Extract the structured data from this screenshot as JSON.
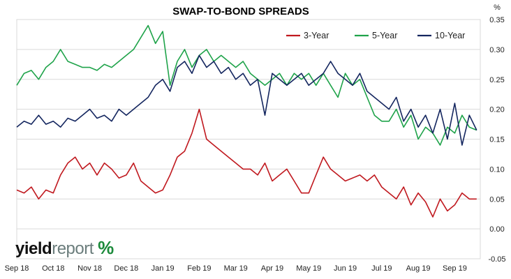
{
  "chart_data": {
    "type": "line",
    "title": "SWAP-TO-BOND SPREADS",
    "unit_label": "%",
    "xlabel": "",
    "ylabel": "",
    "ylim": [
      -0.05,
      0.35
    ],
    "yticks": [
      "0.35",
      "0.30",
      "0.25",
      "0.20",
      "0.15",
      "0.10",
      "0.05",
      "0.00",
      "-0.05"
    ],
    "y_axis_position": "right",
    "xtick_labels": [
      "Sep 18",
      "Oct 18",
      "Nov 18",
      "Dec 18",
      "Jan 19",
      "Feb 19",
      "Mar 19",
      "Apr 19",
      "May 19",
      "Jun 19",
      "Jul 19",
      "Aug 19",
      "Sep 19"
    ],
    "x_range_months": [
      0,
      12.7
    ],
    "grid": true,
    "legend": "top-right",
    "series": [
      {
        "name": "3-Year",
        "color": "#c0191f",
        "x": [
          0,
          0.2,
          0.4,
          0.6,
          0.8,
          1.0,
          1.2,
          1.4,
          1.6,
          1.8,
          2.0,
          2.2,
          2.4,
          2.6,
          2.8,
          3.0,
          3.2,
          3.4,
          3.6,
          3.8,
          4.0,
          4.2,
          4.4,
          4.6,
          4.8,
          5.0,
          5.2,
          5.4,
          5.6,
          5.8,
          6.0,
          6.2,
          6.4,
          6.6,
          6.8,
          7.0,
          7.2,
          7.4,
          7.6,
          7.8,
          8.0,
          8.2,
          8.4,
          8.6,
          8.8,
          9.0,
          9.2,
          9.4,
          9.6,
          9.8,
          10.0,
          10.2,
          10.4,
          10.6,
          10.8,
          11.0,
          11.2,
          11.4,
          11.6,
          11.8,
          12.0,
          12.2,
          12.4,
          12.6
        ],
        "values": [
          0.065,
          0.06,
          0.07,
          0.05,
          0.065,
          0.06,
          0.09,
          0.11,
          0.12,
          0.1,
          0.11,
          0.09,
          0.11,
          0.1,
          0.085,
          0.09,
          0.11,
          0.08,
          0.07,
          0.06,
          0.065,
          0.09,
          0.12,
          0.13,
          0.16,
          0.2,
          0.15,
          0.14,
          0.13,
          0.12,
          0.11,
          0.1,
          0.1,
          0.09,
          0.11,
          0.08,
          0.09,
          0.1,
          0.08,
          0.06,
          0.06,
          0.09,
          0.12,
          0.1,
          0.09,
          0.08,
          0.085,
          0.09,
          0.08,
          0.09,
          0.07,
          0.06,
          0.05,
          0.07,
          0.04,
          0.06,
          0.045,
          0.02,
          0.05,
          0.03,
          0.04,
          0.06,
          0.05,
          0.05
        ]
      },
      {
        "name": "5-Year",
        "color": "#1fa34a",
        "x": [
          0,
          0.2,
          0.4,
          0.6,
          0.8,
          1.0,
          1.2,
          1.4,
          1.6,
          1.8,
          2.0,
          2.2,
          2.4,
          2.6,
          2.8,
          3.0,
          3.2,
          3.4,
          3.6,
          3.8,
          4.0,
          4.2,
          4.4,
          4.6,
          4.8,
          5.0,
          5.2,
          5.4,
          5.6,
          5.8,
          6.0,
          6.2,
          6.4,
          6.6,
          6.8,
          7.0,
          7.2,
          7.4,
          7.6,
          7.8,
          8.0,
          8.2,
          8.4,
          8.6,
          8.8,
          9.0,
          9.2,
          9.4,
          9.6,
          9.8,
          10.0,
          10.2,
          10.4,
          10.6,
          10.8,
          11.0,
          11.2,
          11.4,
          11.6,
          11.8,
          12.0,
          12.2,
          12.4,
          12.6
        ],
        "values": [
          0.24,
          0.26,
          0.265,
          0.25,
          0.27,
          0.28,
          0.3,
          0.28,
          0.275,
          0.27,
          0.27,
          0.265,
          0.275,
          0.27,
          0.28,
          0.29,
          0.3,
          0.32,
          0.34,
          0.31,
          0.33,
          0.24,
          0.28,
          0.3,
          0.27,
          0.29,
          0.3,
          0.28,
          0.29,
          0.28,
          0.27,
          0.28,
          0.26,
          0.25,
          0.24,
          0.25,
          0.26,
          0.24,
          0.26,
          0.25,
          0.26,
          0.24,
          0.26,
          0.24,
          0.22,
          0.26,
          0.24,
          0.25,
          0.22,
          0.19,
          0.18,
          0.18,
          0.2,
          0.17,
          0.19,
          0.15,
          0.17,
          0.16,
          0.14,
          0.17,
          0.16,
          0.19,
          0.17,
          0.165
        ]
      },
      {
        "name": "10-Year",
        "color": "#14265f",
        "x": [
          0,
          0.2,
          0.4,
          0.6,
          0.8,
          1.0,
          1.2,
          1.4,
          1.6,
          1.8,
          2.0,
          2.2,
          2.4,
          2.6,
          2.8,
          3.0,
          3.2,
          3.4,
          3.6,
          3.8,
          4.0,
          4.2,
          4.4,
          4.6,
          4.8,
          5.0,
          5.2,
          5.4,
          5.6,
          5.8,
          6.0,
          6.2,
          6.4,
          6.6,
          6.8,
          7.0,
          7.2,
          7.4,
          7.6,
          7.8,
          8.0,
          8.2,
          8.4,
          8.6,
          8.8,
          9.0,
          9.2,
          9.4,
          9.6,
          9.8,
          10.0,
          10.2,
          10.4,
          10.6,
          10.8,
          11.0,
          11.2,
          11.4,
          11.6,
          11.8,
          12.0,
          12.2,
          12.4,
          12.6
        ],
        "values": [
          0.17,
          0.18,
          0.175,
          0.19,
          0.175,
          0.18,
          0.17,
          0.185,
          0.18,
          0.19,
          0.2,
          0.185,
          0.19,
          0.18,
          0.2,
          0.19,
          0.2,
          0.21,
          0.22,
          0.24,
          0.25,
          0.23,
          0.27,
          0.28,
          0.26,
          0.29,
          0.27,
          0.28,
          0.26,
          0.27,
          0.25,
          0.26,
          0.24,
          0.25,
          0.19,
          0.26,
          0.25,
          0.24,
          0.25,
          0.26,
          0.24,
          0.25,
          0.26,
          0.28,
          0.26,
          0.25,
          0.24,
          0.26,
          0.23,
          0.22,
          0.21,
          0.2,
          0.22,
          0.18,
          0.2,
          0.17,
          0.19,
          0.16,
          0.2,
          0.15,
          0.21,
          0.14,
          0.19,
          0.165
        ]
      }
    ]
  },
  "branding": {
    "logo_part1": "yield",
    "logo_part2": "report",
    "logo_mark": "%"
  }
}
